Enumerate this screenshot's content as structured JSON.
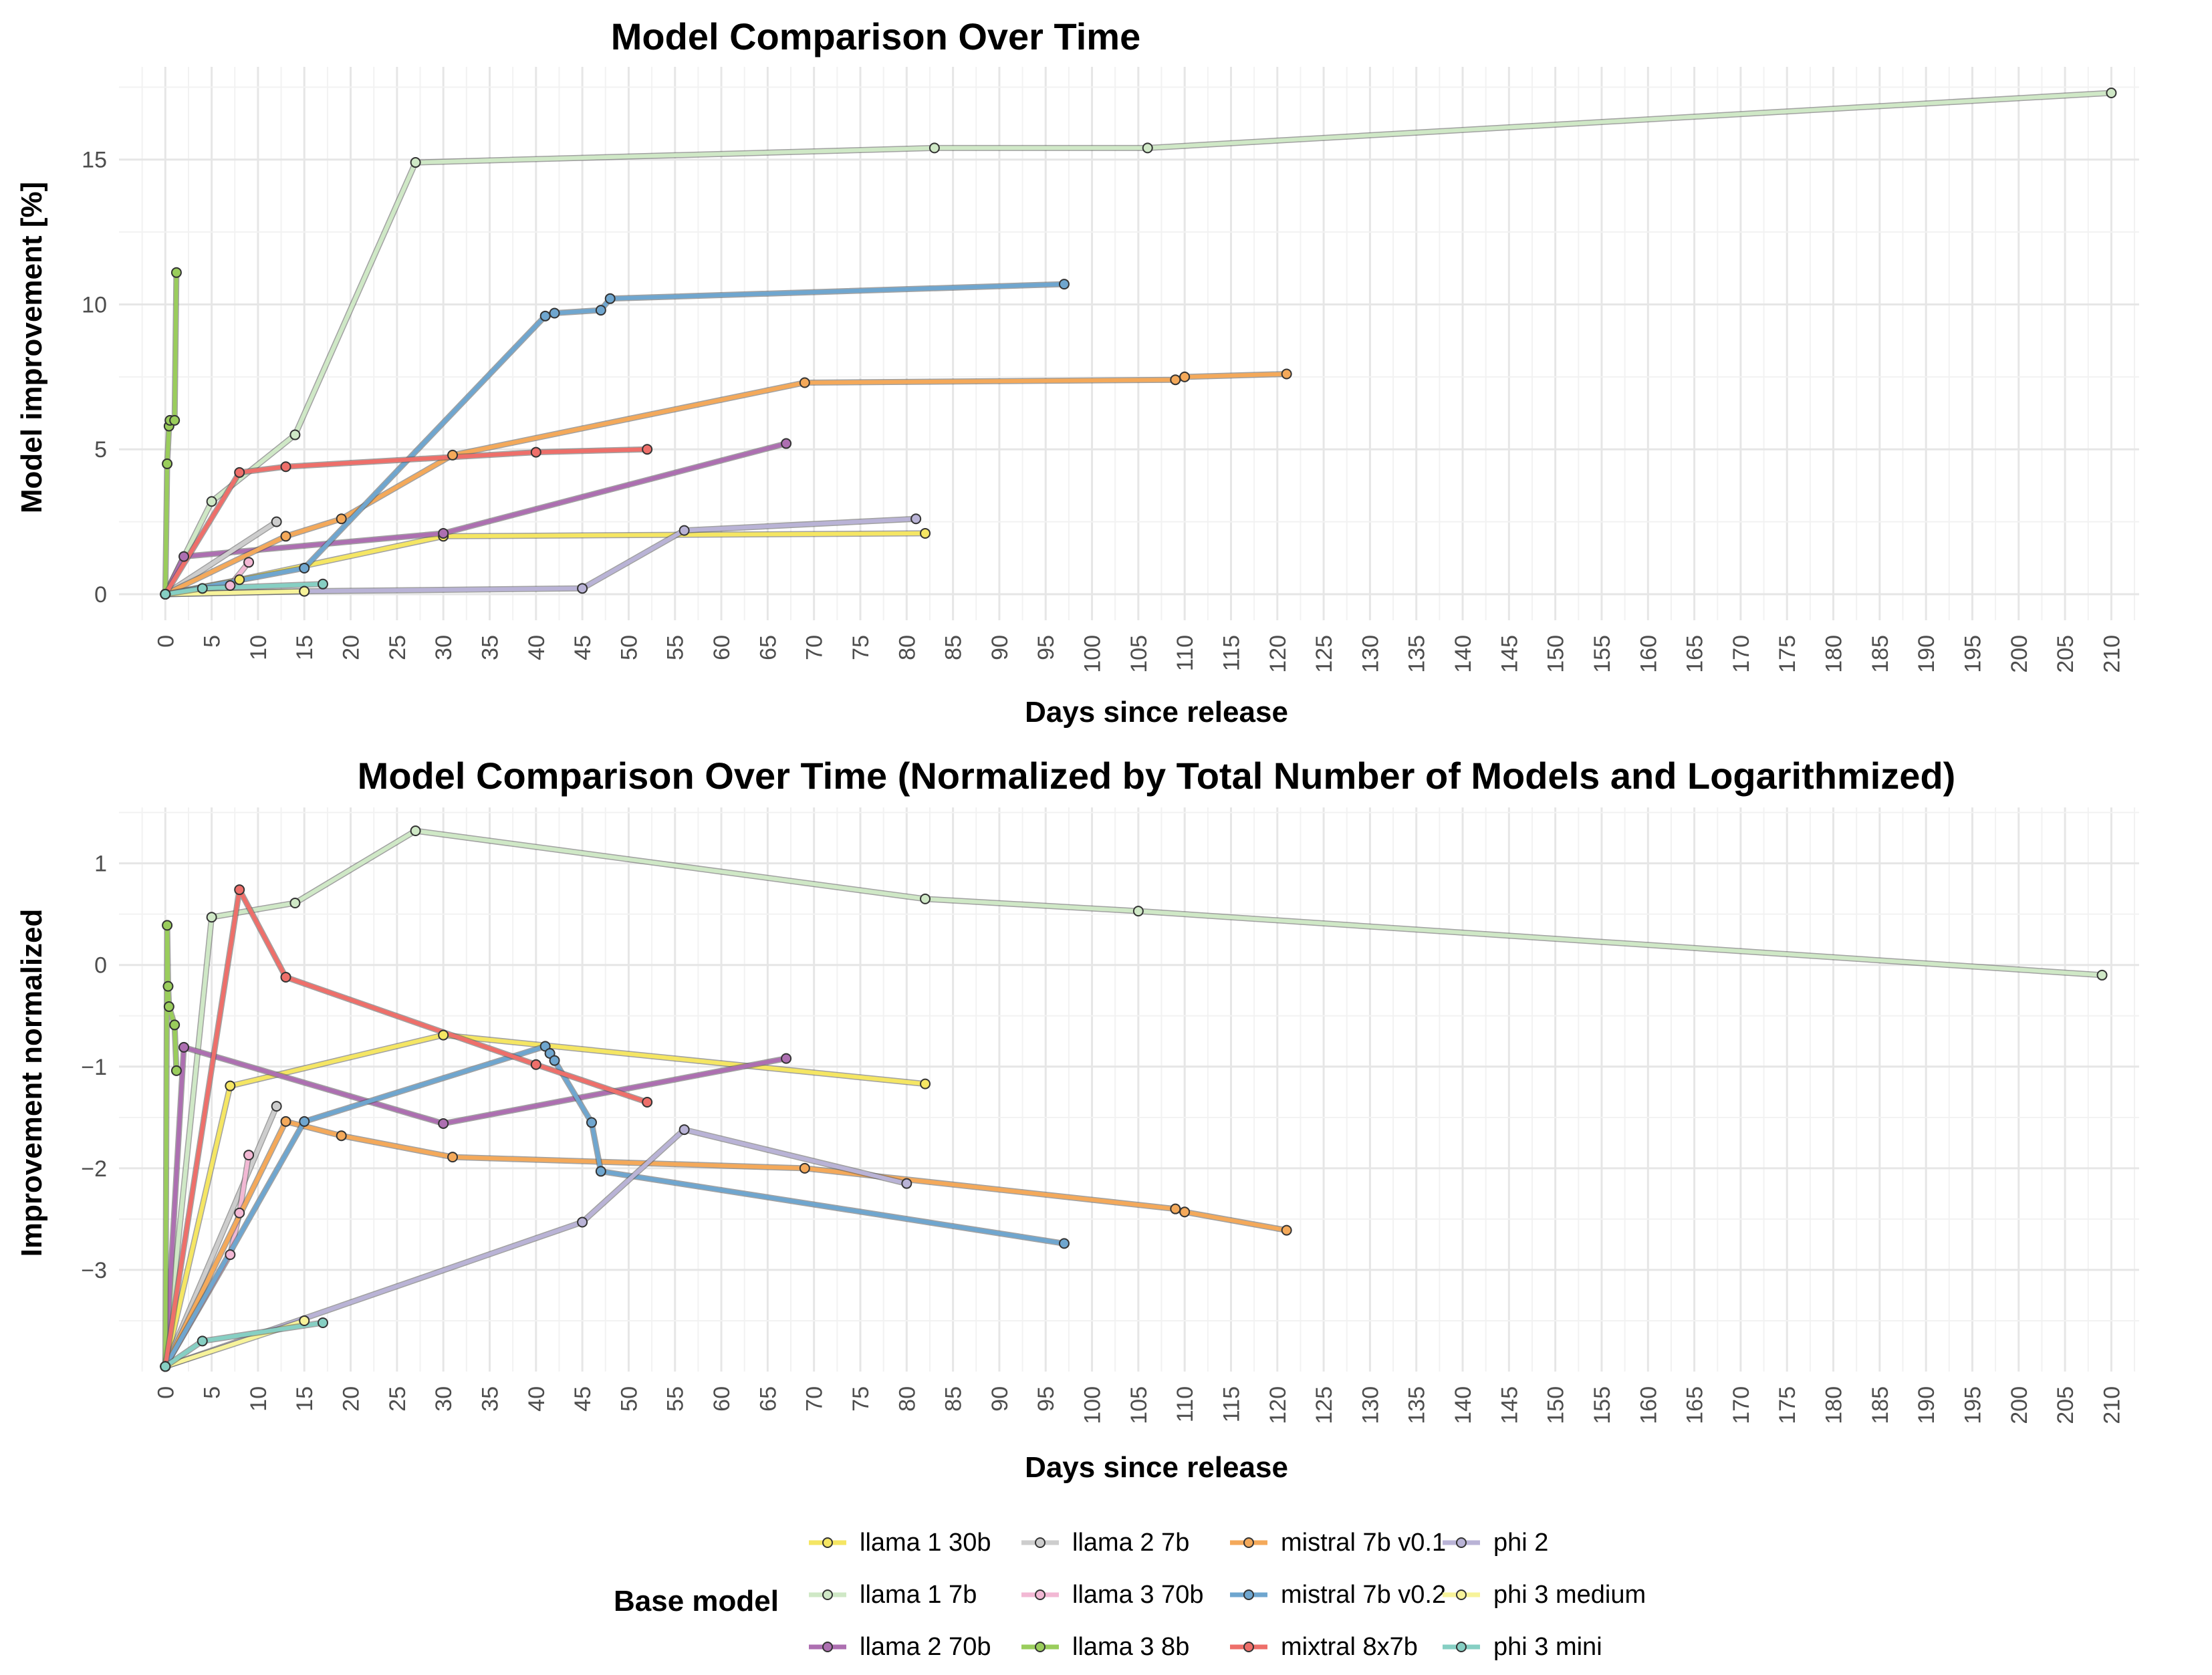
{
  "chart_data": [
    {
      "type": "line",
      "title": "Model Comparison Over Time",
      "xlabel": "Days since release",
      "ylabel": "Model improvement [%]",
      "xlim": [
        -5,
        213
      ],
      "ylim": [
        -0.9,
        18.2
      ],
      "xticks": [
        0,
        5,
        10,
        15,
        20,
        25,
        30,
        35,
        40,
        45,
        50,
        55,
        60,
        65,
        70,
        75,
        80,
        85,
        90,
        95,
        100,
        105,
        110,
        115,
        120,
        125,
        130,
        135,
        140,
        145,
        150,
        155,
        160,
        165,
        170,
        175,
        180,
        185,
        190,
        195,
        200,
        205,
        210
      ],
      "yticks": [
        0,
        5,
        10,
        15
      ],
      "series": [
        {
          "name": "llama 1 30b",
          "points": [
            [
              0,
              0
            ],
            [
              8,
              0.5
            ],
            [
              30,
              2.0
            ],
            [
              82,
              2.1
            ]
          ]
        },
        {
          "name": "llama 1 7b",
          "points": [
            [
              0,
              0
            ],
            [
              5,
              3.2
            ],
            [
              14,
              5.5
            ],
            [
              27,
              14.9
            ],
            [
              83,
              15.4
            ],
            [
              106,
              15.4
            ],
            [
              210,
              17.3
            ]
          ]
        },
        {
          "name": "llama 2 70b",
          "points": [
            [
              0,
              0
            ],
            [
              2,
              1.3
            ],
            [
              30,
              2.1
            ],
            [
              67,
              5.2
            ]
          ]
        },
        {
          "name": "llama 2 7b",
          "points": [
            [
              0,
              0
            ],
            [
              12,
              2.5
            ]
          ]
        },
        {
          "name": "llama 3 70b",
          "points": [
            [
              0,
              0
            ],
            [
              7,
              0.3
            ],
            [
              9,
              1.1
            ]
          ]
        },
        {
          "name": "llama 3 8b",
          "points": [
            [
              0,
              0
            ],
            [
              0.2,
              4.5
            ],
            [
              0.4,
              5.8
            ],
            [
              0.5,
              6.0
            ],
            [
              1,
              6.0
            ],
            [
              1.2,
              11.1
            ]
          ]
        },
        {
          "name": "mistral 7b v0.1",
          "points": [
            [
              0,
              0
            ],
            [
              13,
              2.0
            ],
            [
              19,
              2.6
            ],
            [
              31,
              4.8
            ],
            [
              69,
              7.3
            ],
            [
              109,
              7.4
            ],
            [
              110,
              7.5
            ],
            [
              121,
              7.6
            ]
          ]
        },
        {
          "name": "mistral 7b v0.2",
          "points": [
            [
              0,
              0
            ],
            [
              15,
              0.9
            ],
            [
              41,
              9.6
            ],
            [
              42,
              9.7
            ],
            [
              47,
              9.8
            ],
            [
              48,
              10.2
            ],
            [
              97,
              10.7
            ]
          ]
        },
        {
          "name": "mixtral 8x7b",
          "points": [
            [
              0,
              0
            ],
            [
              8,
              4.2
            ],
            [
              13,
              4.4
            ],
            [
              40,
              4.9
            ],
            [
              52,
              5.0
            ]
          ]
        },
        {
          "name": "phi 2",
          "points": [
            [
              0,
              0
            ],
            [
              15,
              0.1
            ],
            [
              45,
              0.2
            ],
            [
              56,
              2.2
            ],
            [
              81,
              2.6
            ]
          ]
        },
        {
          "name": "phi 3 medium",
          "points": [
            [
              0,
              0
            ],
            [
              15,
              0.1
            ]
          ]
        },
        {
          "name": "phi 3 mini",
          "points": [
            [
              0,
              0
            ],
            [
              4,
              0.2
            ],
            [
              17,
              0.35
            ]
          ]
        }
      ]
    },
    {
      "type": "line",
      "title": "Model Comparison Over Time (Normalized by Total Number of Models and Logarithmized)",
      "xlabel": "Days since release",
      "ylabel": "Improvement normalized",
      "xlim": [
        -5,
        213
      ],
      "ylim": [
        -4.0,
        1.55
      ],
      "xticks": [
        0,
        5,
        10,
        15,
        20,
        25,
        30,
        35,
        40,
        45,
        50,
        55,
        60,
        65,
        70,
        75,
        80,
        85,
        90,
        95,
        100,
        105,
        110,
        115,
        120,
        125,
        130,
        135,
        140,
        145,
        150,
        155,
        160,
        165,
        170,
        175,
        180,
        185,
        190,
        195,
        200,
        205,
        210
      ],
      "yticks": [
        1,
        0,
        -1,
        -2,
        -3
      ],
      "series": [
        {
          "name": "llama 1 30b",
          "points": [
            [
              0,
              -3.95
            ],
            [
              7,
              -1.19
            ],
            [
              30,
              -0.69
            ],
            [
              82,
              -1.17
            ]
          ]
        },
        {
          "name": "llama 1 7b",
          "points": [
            [
              0,
              -3.95
            ],
            [
              5,
              0.47
            ],
            [
              14,
              0.61
            ],
            [
              27,
              1.32
            ],
            [
              82,
              0.65
            ],
            [
              105,
              0.53
            ],
            [
              209,
              -0.1
            ]
          ]
        },
        {
          "name": "llama 2 70b",
          "points": [
            [
              0,
              -3.95
            ],
            [
              2,
              -0.81
            ],
            [
              30,
              -1.56
            ],
            [
              67,
              -0.92
            ]
          ]
        },
        {
          "name": "llama 2 7b",
          "points": [
            [
              0,
              -3.95
            ],
            [
              12,
              -1.39
            ]
          ]
        },
        {
          "name": "llama 3 70b",
          "points": [
            [
              0,
              -3.95
            ],
            [
              7,
              -2.85
            ],
            [
              8,
              -2.44
            ],
            [
              9,
              -1.87
            ]
          ]
        },
        {
          "name": "llama 3 8b",
          "points": [
            [
              0,
              -3.95
            ],
            [
              0.2,
              0.39
            ],
            [
              0.3,
              -0.21
            ],
            [
              0.4,
              -0.41
            ],
            [
              1,
              -0.59
            ],
            [
              1.2,
              -1.04
            ]
          ]
        },
        {
          "name": "mistral 7b v0.1",
          "points": [
            [
              0,
              -3.95
            ],
            [
              13,
              -1.54
            ],
            [
              19,
              -1.68
            ],
            [
              31,
              -1.89
            ],
            [
              69,
              -2.0
            ],
            [
              109,
              -2.4
            ],
            [
              110,
              -2.43
            ],
            [
              121,
              -2.61
            ]
          ]
        },
        {
          "name": "mistral 7b v0.2",
          "points": [
            [
              0,
              -3.95
            ],
            [
              15,
              -1.54
            ],
            [
              41,
              -0.8
            ],
            [
              41.5,
              -0.87
            ],
            [
              42,
              -0.94
            ],
            [
              46,
              -1.55
            ],
            [
              47,
              -2.03
            ],
            [
              97,
              -2.74
            ]
          ]
        },
        {
          "name": "mixtral 8x7b",
          "points": [
            [
              0,
              -3.95
            ],
            [
              8,
              0.74
            ],
            [
              13,
              -0.12
            ],
            [
              40,
              -0.98
            ],
            [
              52,
              -1.35
            ]
          ]
        },
        {
          "name": "phi 2",
          "points": [
            [
              0,
              -3.95
            ],
            [
              45,
              -2.53
            ],
            [
              56,
              -1.62
            ],
            [
              80,
              -2.15
            ]
          ]
        },
        {
          "name": "phi 3 medium",
          "points": [
            [
              0,
              -3.95
            ],
            [
              15,
              -3.5
            ]
          ]
        },
        {
          "name": "phi 3 mini",
          "points": [
            [
              0,
              -3.95
            ],
            [
              4,
              -3.7
            ],
            [
              17,
              -3.52
            ]
          ]
        }
      ]
    }
  ],
  "colors": {
    "llama 1 30b": "#f5e663",
    "llama 1 7b": "#cfe8c6",
    "llama 2 70b": "#ad6fb1",
    "llama 2 7b": "#cdcdcd",
    "llama 3 70b": "#f2b8d4",
    "llama 3 8b": "#9acd5c",
    "mistral 7b v0.1": "#f4a95a",
    "mistral 7b v0.2": "#6fa6cf",
    "mixtral 8x7b": "#ee6f6a",
    "phi 2": "#b9b3d6",
    "phi 3 medium": "#f7f39a",
    "phi 3 mini": "#86cfc3"
  },
  "legend": {
    "title": "Base model",
    "columns": [
      [
        "llama 1 30b",
        "llama 1 7b",
        "llama 2 70b"
      ],
      [
        "llama 2 7b",
        "llama 3 70b",
        "llama 3 8b"
      ],
      [
        "mistral 7b v0.1",
        "mistral 7b v0.2",
        "mixtral 8x7b"
      ],
      [
        "phi 2",
        "phi 3 medium",
        "phi 3 mini"
      ]
    ]
  }
}
